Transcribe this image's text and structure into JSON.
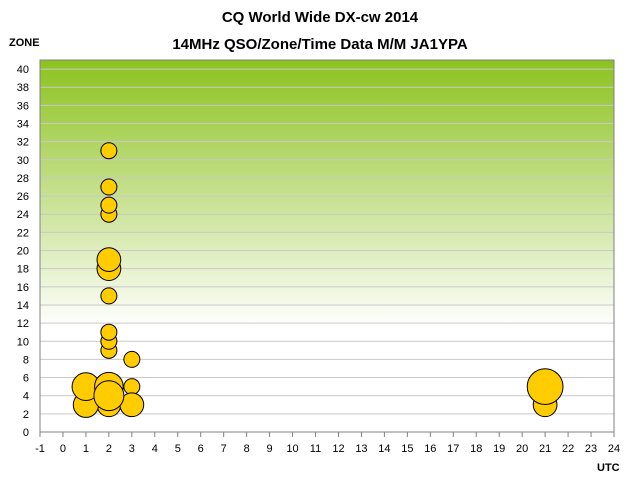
{
  "chart_data": {
    "type": "scatter",
    "title": "CQ World Wide DX-cw 2014",
    "subtitle": "14MHz QSO/Zone/Time Data M/M JA1YPA",
    "xlabel": "UTC",
    "ylabel": "ZONE",
    "xlim": [
      -1,
      24
    ],
    "ylim": [
      0,
      41
    ],
    "x_ticks": [
      -1,
      0,
      1,
      2,
      3,
      4,
      5,
      6,
      7,
      8,
      9,
      10,
      11,
      12,
      13,
      14,
      15,
      16,
      17,
      18,
      19,
      20,
      21,
      22,
      23,
      24
    ],
    "y_ticks": [
      0,
      2,
      4,
      6,
      8,
      10,
      12,
      14,
      16,
      18,
      20,
      22,
      24,
      26,
      28,
      30,
      32,
      34,
      36,
      38,
      40
    ],
    "grid": true,
    "legend": "none",
    "colors": {
      "marker_fill": "#FFCC00",
      "marker_stroke": "#000000",
      "plot_top": "#8CC21E",
      "plot_bottom": "#FFFFFF",
      "grid": "#C9C9C9"
    },
    "points": [
      {
        "x": 1,
        "y": 5,
        "size": 3
      },
      {
        "x": 1,
        "y": 3,
        "size": 2.5
      },
      {
        "x": 2,
        "y": 31,
        "size": 1
      },
      {
        "x": 2,
        "y": 27,
        "size": 1
      },
      {
        "x": 2,
        "y": 25,
        "size": 1
      },
      {
        "x": 2,
        "y": 24,
        "size": 1
      },
      {
        "x": 2,
        "y": 19,
        "size": 2.2
      },
      {
        "x": 2,
        "y": 18,
        "size": 2.2
      },
      {
        "x": 2,
        "y": 15,
        "size": 1
      },
      {
        "x": 2,
        "y": 11,
        "size": 1
      },
      {
        "x": 2,
        "y": 10,
        "size": 1
      },
      {
        "x": 2,
        "y": 9,
        "size": 1
      },
      {
        "x": 2,
        "y": 5,
        "size": 3.2
      },
      {
        "x": 2,
        "y": 4,
        "size": 3.5
      },
      {
        "x": 2,
        "y": 3,
        "size": 2.2
      },
      {
        "x": 3,
        "y": 8,
        "size": 1
      },
      {
        "x": 3,
        "y": 5,
        "size": 1
      },
      {
        "x": 3,
        "y": 3,
        "size": 2.2
      },
      {
        "x": 21,
        "y": 5,
        "size": 5
      },
      {
        "x": 21,
        "y": 3,
        "size": 2.2
      }
    ]
  }
}
